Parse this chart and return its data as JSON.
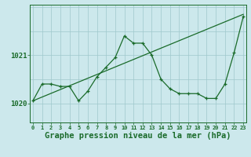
{
  "title": "Graphe pression niveau de la mer (hPa)",
  "bg_color": "#cce8ec",
  "grid_color": "#9fc8cc",
  "line_color": "#1a6b2a",
  "x_hours": [
    0,
    1,
    2,
    3,
    4,
    5,
    6,
    7,
    8,
    9,
    10,
    11,
    12,
    13,
    14,
    15,
    16,
    17,
    18,
    19,
    20,
    21,
    22,
    23
  ],
  "series1": [
    1020.05,
    1020.4,
    1020.4,
    1020.35,
    1020.35,
    1020.05,
    1020.25,
    1020.55,
    1020.75,
    1020.95,
    1021.4,
    1021.25,
    1021.25,
    1021.0,
    1020.5,
    1020.3,
    1020.2,
    1020.2,
    1020.2,
    1020.1,
    1020.1,
    1020.4,
    1021.05,
    1021.8
  ],
  "series2": [
    1020.05,
    null,
    null,
    null,
    null,
    null,
    null,
    null,
    null,
    null,
    null,
    null,
    null,
    null,
    null,
    null,
    null,
    null,
    null,
    null,
    null,
    null,
    null,
    1021.85
  ],
  "ytick_positions": [
    1020,
    1021
  ],
  "ytick_labels": [
    "1020",
    "1021"
  ],
  "ylim": [
    1019.6,
    1022.05
  ],
  "xlim": [
    -0.3,
    23.3
  ],
  "tick_fontsize": 6.5,
  "label_fontsize": 7.5
}
